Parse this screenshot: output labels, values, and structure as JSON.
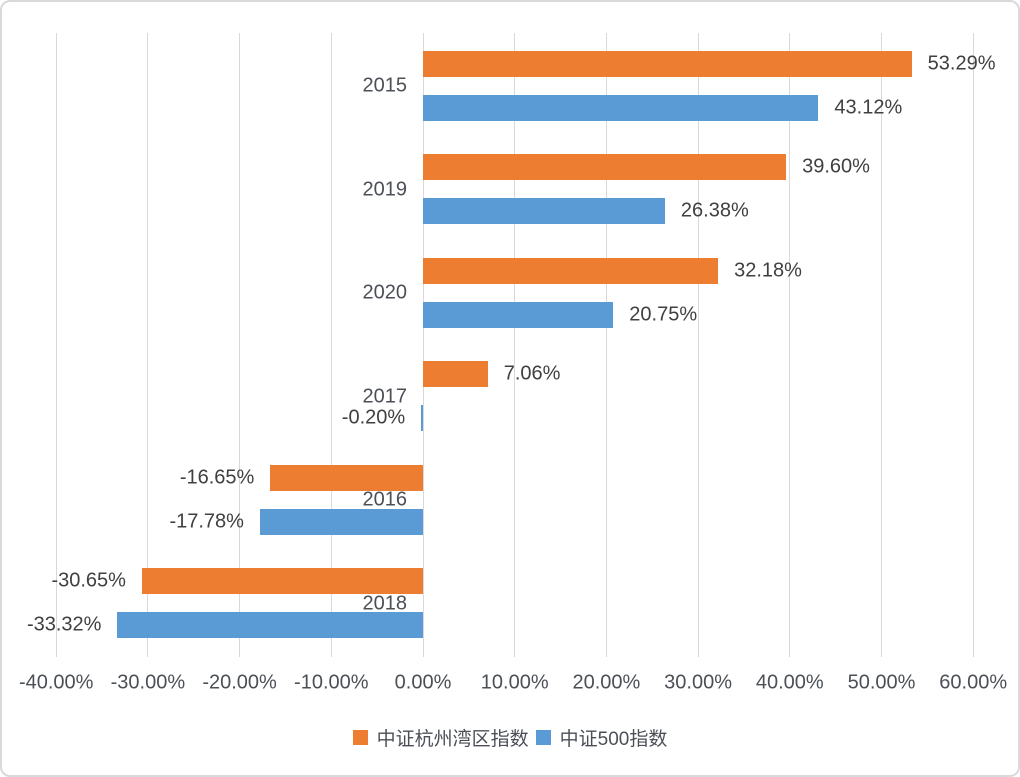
{
  "chart_data": {
    "type": "bar",
    "orientation": "horizontal",
    "title": "",
    "categories": [
      "2015",
      "2019",
      "2020",
      "2017",
      "2016",
      "2018"
    ],
    "series": [
      {
        "name": "中证杭州湾区指数",
        "color": "#ED7D31",
        "values": [
          53.29,
          39.6,
          32.18,
          7.06,
          -16.65,
          -30.65
        ]
      },
      {
        "name": "中证500指数",
        "color": "#5B9BD5",
        "values": [
          43.12,
          26.38,
          20.75,
          -0.2,
          -17.78,
          -33.32
        ]
      }
    ],
    "value_labels": [
      [
        "53.29%",
        "39.60%",
        "32.18%",
        "7.06%",
        "-16.65%",
        "-30.65%"
      ],
      [
        "43.12%",
        "26.38%",
        "20.75%",
        "-0.20%",
        "-17.78%",
        "-33.32%"
      ]
    ],
    "xlim": [
      -40,
      60
    ],
    "x_ticks": [
      -40,
      -30,
      -20,
      -10,
      0,
      10,
      20,
      30,
      40,
      50,
      60
    ],
    "x_tick_labels": [
      "-40.00%",
      "-30.00%",
      "-20.00%",
      "-10.00%",
      "0.00%",
      "10.00%",
      "20.00%",
      "30.00%",
      "40.00%",
      "50.00%",
      "60.00%"
    ],
    "grid": "vertical",
    "legend_position": "bottom",
    "colors": {
      "gridline": "#D9D9D9",
      "border": "#D9D9D9",
      "data_label": "#404040",
      "axis_label": "#4B5057"
    }
  }
}
